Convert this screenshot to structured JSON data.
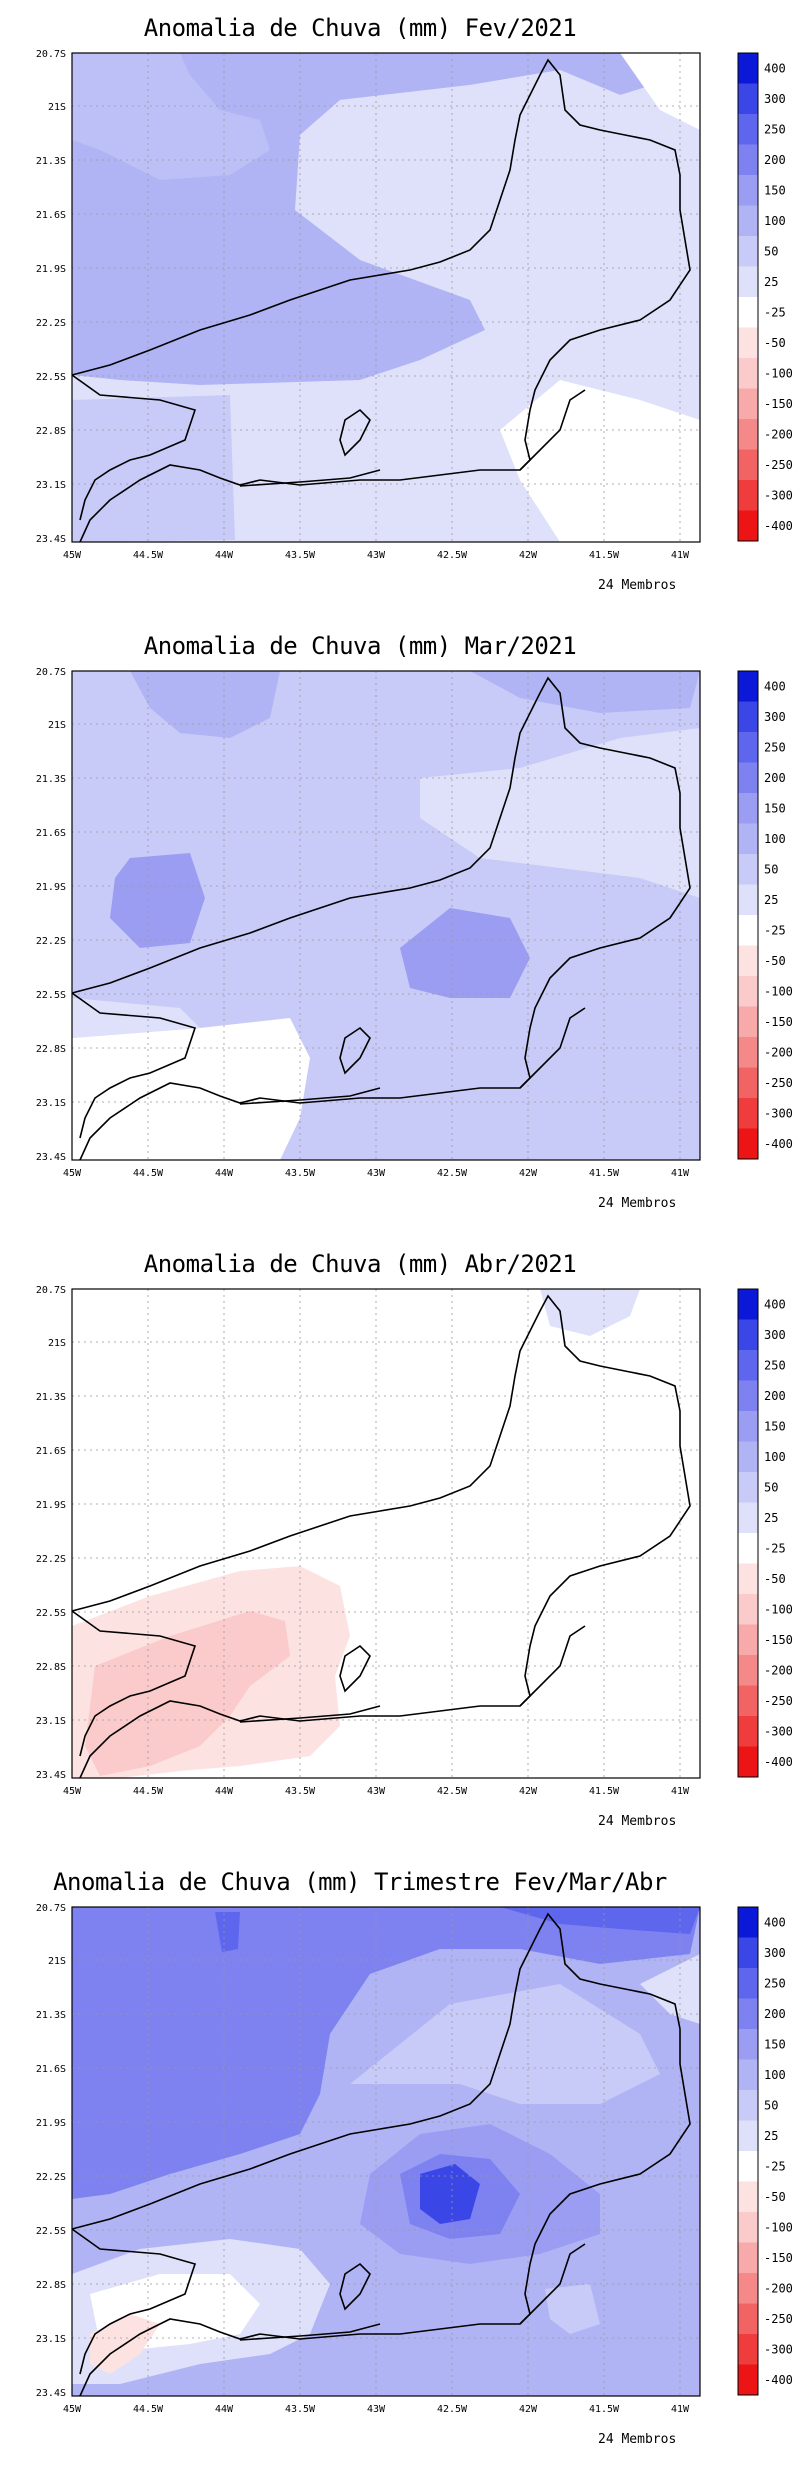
{
  "colorbar": {
    "levels": [
      "400",
      "300",
      "250",
      "200",
      "150",
      "100",
      "50",
      "25",
      "-25",
      "-50",
      "-100",
      "-150",
      "-200",
      "-250",
      "-300",
      "-400"
    ],
    "colors": [
      "#0b18d8",
      "#3b46e6",
      "#5f66ee",
      "#7d82f0",
      "#9a9df2",
      "#b1b4f4",
      "#c8cbf7",
      "#dfe1fa",
      "#ffffff",
      "#fde2e2",
      "#fbcaca",
      "#f8a9a9",
      "#f58888",
      "#f26464",
      "#ef3d3d",
      "#ec1414"
    ]
  },
  "axes": {
    "lat_labels": [
      "20.7S",
      "21S",
      "21.3S",
      "21.6S",
      "21.9S",
      "22.2S",
      "22.5S",
      "22.8S",
      "23.1S",
      "23.4S"
    ],
    "lon_labels": [
      "45W",
      "44.5W",
      "44W",
      "43.5W",
      "43W",
      "42.5W",
      "42W",
      "41.5W",
      "41W"
    ]
  },
  "panels": [
    {
      "title": "Anomalia de Chuva (mm) Fev/2021",
      "members": "24 Membros"
    },
    {
      "title": "Anomalia de Chuva (mm) Mar/2021",
      "members": "24 Membros"
    },
    {
      "title": "Anomalia de Chuva (mm) Abr/2021",
      "members": "24 Membros"
    },
    {
      "title": "Anomalia de Chuva (mm) Trimestre Fev/Mar/Abr",
      "members": "24 Membros"
    }
  ]
}
